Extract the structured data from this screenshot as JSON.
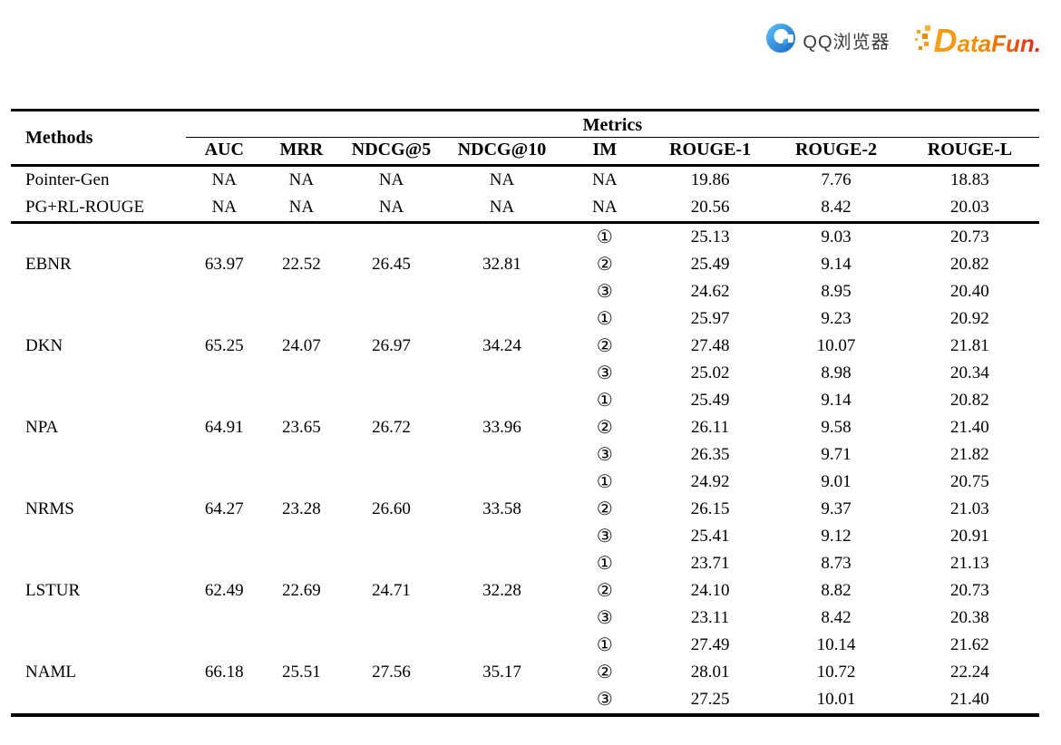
{
  "logos": {
    "qq_label": "QQ浏览器",
    "datafun_label": "DataFun."
  },
  "colors": {
    "qq_blue_light": "#5BC0F8",
    "qq_blue_dark": "#1566C0",
    "datafun_orange": "#F6A01A",
    "datafun_red": "#E1251B",
    "rule_black": "#000000"
  },
  "table": {
    "methods_header": "Methods",
    "metrics_header": "Metrics",
    "columns": [
      "AUC",
      "MRR",
      "NDCG@5",
      "NDCG@10",
      "IM",
      "ROUGE-1",
      "ROUGE-2",
      "ROUGE-L"
    ],
    "baseline_rows": [
      {
        "method": "Pointer-Gen",
        "auc": "NA",
        "mrr": "NA",
        "ndcg5": "NA",
        "ndcg10": "NA",
        "im": "NA",
        "rouge1": "19.86",
        "rouge2": "7.76",
        "rougel": "18.83"
      },
      {
        "method": "PG+RL-ROUGE",
        "auc": "NA",
        "mrr": "NA",
        "ndcg5": "NA",
        "ndcg10": "NA",
        "im": "NA",
        "rouge1": "20.56",
        "rouge2": "8.42",
        "rougel": "20.03"
      }
    ],
    "method_groups": [
      {
        "method": "EBNR",
        "auc": "63.97",
        "mrr": "22.52",
        "ndcg5": "26.45",
        "ndcg10": "32.81",
        "im_rows": [
          {
            "im": "①",
            "rouge1": "25.13",
            "rouge2": "9.03",
            "rougel": "20.73"
          },
          {
            "im": "②",
            "rouge1": "25.49",
            "rouge2": "9.14",
            "rougel": "20.82"
          },
          {
            "im": "③",
            "rouge1": "24.62",
            "rouge2": "8.95",
            "rougel": "20.40"
          }
        ]
      },
      {
        "method": "DKN",
        "auc": "65.25",
        "mrr": "24.07",
        "ndcg5": "26.97",
        "ndcg10": "34.24",
        "im_rows": [
          {
            "im": "①",
            "rouge1": "25.97",
            "rouge2": "9.23",
            "rougel": "20.92"
          },
          {
            "im": "②",
            "rouge1": "27.48",
            "rouge2": "10.07",
            "rougel": "21.81"
          },
          {
            "im": "③",
            "rouge1": "25.02",
            "rouge2": "8.98",
            "rougel": "20.34"
          }
        ]
      },
      {
        "method": "NPA",
        "auc": "64.91",
        "mrr": "23.65",
        "ndcg5": "26.72",
        "ndcg10": "33.96",
        "im_rows": [
          {
            "im": "①",
            "rouge1": "25.49",
            "rouge2": "9.14",
            "rougel": "20.82"
          },
          {
            "im": "②",
            "rouge1": "26.11",
            "rouge2": "9.58",
            "rougel": "21.40"
          },
          {
            "im": "③",
            "rouge1": "26.35",
            "rouge2": "9.71",
            "rougel": "21.82"
          }
        ]
      },
      {
        "method": "NRMS",
        "auc": "64.27",
        "mrr": "23.28",
        "ndcg5": "26.60",
        "ndcg10": "33.58",
        "im_rows": [
          {
            "im": "①",
            "rouge1": "24.92",
            "rouge2": "9.01",
            "rougel": "20.75"
          },
          {
            "im": "②",
            "rouge1": "26.15",
            "rouge2": "9.37",
            "rougel": "21.03"
          },
          {
            "im": "③",
            "rouge1": "25.41",
            "rouge2": "9.12",
            "rougel": "20.91"
          }
        ]
      },
      {
        "method": "LSTUR",
        "auc": "62.49",
        "mrr": "22.69",
        "ndcg5": "24.71",
        "ndcg10": "32.28",
        "im_rows": [
          {
            "im": "①",
            "rouge1": "23.71",
            "rouge2": "8.73",
            "rougel": "21.13"
          },
          {
            "im": "②",
            "rouge1": "24.10",
            "rouge2": "8.82",
            "rougel": "20.73"
          },
          {
            "im": "③",
            "rouge1": "23.11",
            "rouge2": "8.42",
            "rougel": "20.38"
          }
        ]
      },
      {
        "method": "NAML",
        "auc": "66.18",
        "mrr": "25.51",
        "ndcg5": "27.56",
        "ndcg10": "35.17",
        "im_rows": [
          {
            "im": "①",
            "rouge1": "27.49",
            "rouge2": "10.14",
            "rougel": "21.62"
          },
          {
            "im": "②",
            "rouge1": "28.01",
            "rouge2": "10.72",
            "rougel": "22.24"
          },
          {
            "im": "③",
            "rouge1": "27.25",
            "rouge2": "10.01",
            "rougel": "21.40"
          }
        ]
      }
    ]
  }
}
